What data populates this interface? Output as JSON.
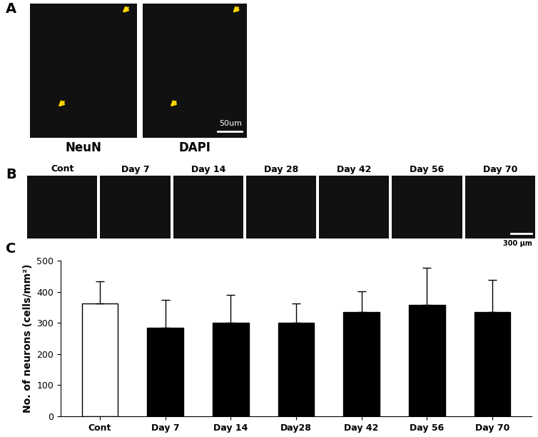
{
  "panel_labels": [
    "A",
    "B",
    "C"
  ],
  "panel_a": {
    "images": [
      "NeuN",
      "DAPI"
    ],
    "scale_bar": "50um"
  },
  "panel_b": {
    "images": [
      "Cont",
      "Day 7",
      "Day 14",
      "Day 28",
      "Day 42",
      "Day 56",
      "Day 70"
    ],
    "scale_bar": "300 μm"
  },
  "chart_data": {
    "type": "bar",
    "categories": [
      "Cont",
      "Day 7",
      "Day 14",
      "Day28",
      "Day 42",
      "Day 56",
      "Day 70"
    ],
    "values": [
      363,
      285,
      301,
      301,
      334,
      358,
      334
    ],
    "errors": [
      70,
      88,
      89,
      61,
      67,
      120,
      105
    ],
    "colors": [
      "#ffffff",
      "#000000",
      "#000000",
      "#000000",
      "#000000",
      "#000000",
      "#000000"
    ],
    "ylabel": "No. of neurons (cells/mm²)",
    "ylim": [
      0,
      500
    ],
    "yticks": [
      0,
      100,
      200,
      300,
      400,
      500
    ]
  }
}
